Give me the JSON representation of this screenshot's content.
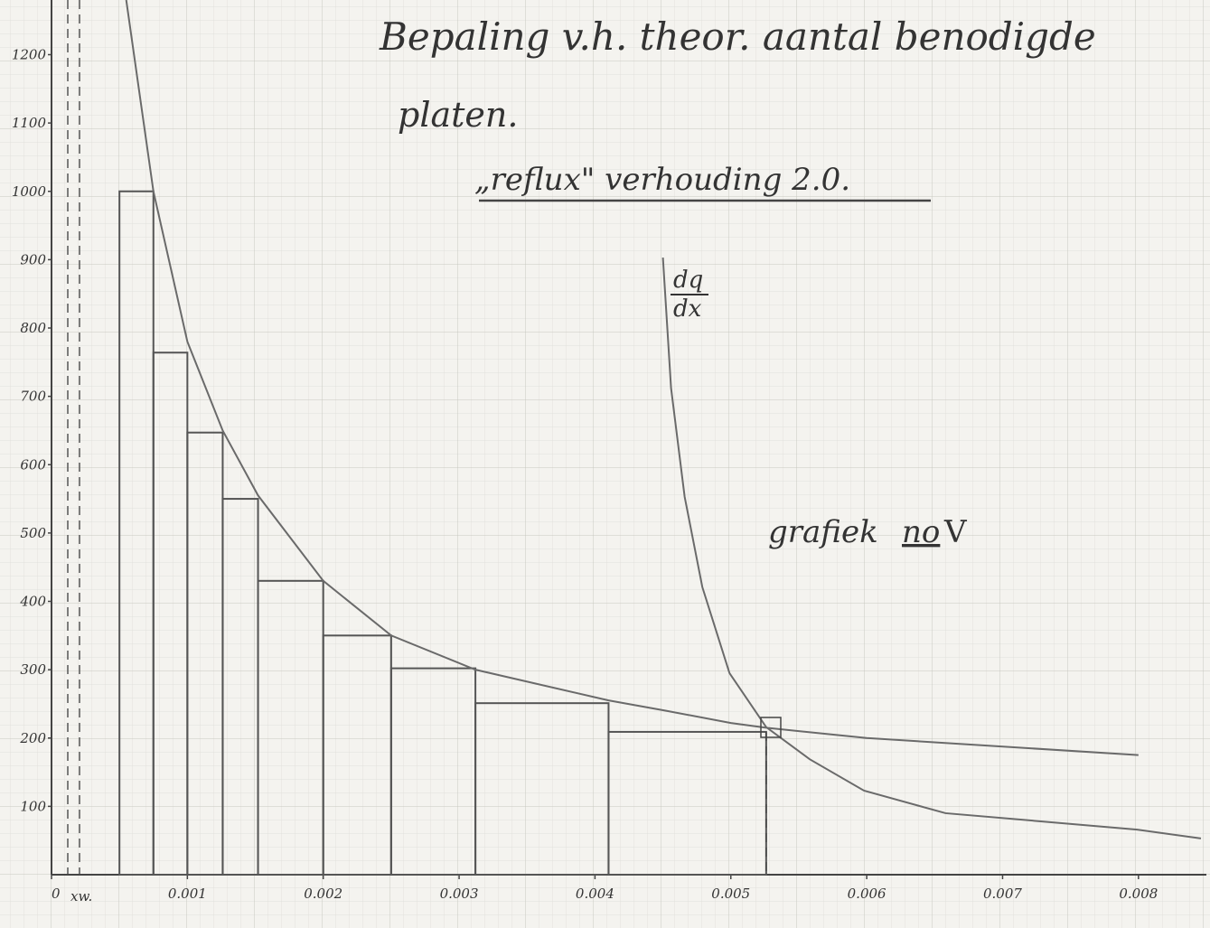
{
  "chart_data": {
    "type": "histogram",
    "title": "Bepaling v.h. theor. aantal benodigde",
    "title_line2": "platen.",
    "subtitle": "„reflux\" verhouding  2.0.",
    "annotations": [
      "grafiek",
      "no",
      "V",
      "dq",
      "dx",
      "xw."
    ],
    "bins": [
      0.0005,
      0.00075,
      0.001,
      0.00126,
      0.00152,
      0.002,
      0.0025,
      0.00312,
      0.0041,
      0.00526
    ],
    "values": [
      1000,
      764,
      647,
      550,
      430,
      350,
      302,
      251,
      209
    ],
    "color": "#555555",
    "series": [
      {
        "color": "#6a6a6a",
        "x": [
          0.00055,
          0.00075,
          0.001,
          0.00126,
          0.00152,
          0.002,
          0.0025,
          0.00312,
          0.0041,
          0.00452,
          0.005,
          0.00526,
          0.006,
          0.008
        ],
        "values": [
          1280,
          1000,
          780,
          650,
          555,
          430,
          350,
          300,
          255,
          240,
          222,
          215,
          200,
          175
        ]
      },
      {
        "color": "#6a6a6a",
        "x": [
          0.0045,
          0.00456,
          0.00466,
          0.00479,
          0.00499,
          0.00526,
          0.00558,
          0.00598,
          0.00658,
          0.00799,
          0.00846
        ],
        "values": [
          903,
          712,
          553,
          421,
          295,
          216,
          169,
          123,
          90,
          66,
          53
        ]
      }
    ],
    "xlim": [
      0,
      0.0085
    ],
    "xticks": [
      0,
      0.001,
      0.002,
      0.003,
      0.004,
      0.005,
      0.006,
      0.007,
      0.008
    ],
    "ylim": [
      0,
      1280
    ],
    "yticks": [
      100,
      200,
      300,
      400,
      500,
      600,
      700,
      800,
      900,
      1000,
      1100,
      1200
    ]
  }
}
